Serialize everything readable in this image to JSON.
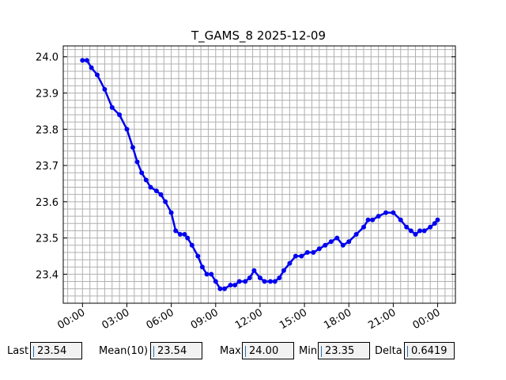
{
  "chart_data": {
    "type": "line",
    "title": "T_GAMS_8 2025-12-09",
    "xlabel": "",
    "ylabel": "",
    "x_unit": "hours since 00:00",
    "xlim": [
      -1.3,
      25.2
    ],
    "ylim": [
      23.32,
      24.03
    ],
    "x_tick_values": [
      0,
      3,
      6,
      9,
      12,
      15,
      18,
      21,
      24
    ],
    "x_tick_labels": [
      "00:00",
      "03:00",
      "06:00",
      "09:00",
      "12:00",
      "15:00",
      "18:00",
      "21:00",
      "00:00"
    ],
    "y_tick_values": [
      23.4,
      23.5,
      23.6,
      23.7,
      23.8,
      23.9,
      24.0
    ],
    "y_tick_labels": [
      "23.4",
      "23.5",
      "23.6",
      "23.7",
      "23.8",
      "23.9",
      "24.0"
    ],
    "grid": true,
    "series": [
      {
        "color": "#0000ee",
        "x": [
          0.0,
          0.3,
          0.6,
          1.0,
          1.5,
          2.0,
          2.5,
          3.0,
          3.4,
          3.7,
          4.0,
          4.3,
          4.6,
          5.0,
          5.3,
          5.6,
          6.0,
          6.3,
          6.6,
          6.9,
          7.1,
          7.4,
          7.8,
          8.1,
          8.4,
          8.7,
          9.0,
          9.3,
          9.6,
          10.0,
          10.3,
          10.6,
          11.0,
          11.3,
          11.6,
          12.0,
          12.3,
          12.7,
          13.0,
          13.3,
          13.6,
          14.0,
          14.4,
          14.8,
          15.2,
          15.6,
          16.0,
          16.4,
          16.8,
          17.2,
          17.6,
          18.0,
          18.5,
          19.0,
          19.3,
          19.6,
          20.0,
          20.5,
          21.0,
          21.5,
          21.9,
          22.2,
          22.5,
          22.8,
          23.1,
          23.5,
          23.8,
          24.0
        ],
        "y": [
          23.99,
          23.99,
          23.97,
          23.95,
          23.91,
          23.86,
          23.84,
          23.8,
          23.75,
          23.71,
          23.68,
          23.66,
          23.64,
          23.63,
          23.62,
          23.6,
          23.57,
          23.52,
          23.51,
          23.51,
          23.5,
          23.48,
          23.45,
          23.42,
          23.4,
          23.4,
          23.38,
          23.36,
          23.36,
          23.37,
          23.37,
          23.38,
          23.38,
          23.39,
          23.41,
          23.39,
          23.38,
          23.38,
          23.38,
          23.39,
          23.41,
          23.43,
          23.45,
          23.45,
          23.46,
          23.46,
          23.47,
          23.48,
          23.49,
          23.5,
          23.48,
          23.49,
          23.51,
          23.53,
          23.55,
          23.55,
          23.56,
          23.57,
          23.57,
          23.55,
          23.53,
          23.52,
          23.51,
          23.52,
          23.52,
          23.53,
          23.54,
          23.55
        ]
      }
    ]
  },
  "stats": {
    "last_label": "Last",
    "last_value": "23.54",
    "mean_label": "Mean(10)",
    "mean_value": "23.54",
    "max_label": "Max",
    "max_value": "24.00",
    "min_label": "Min",
    "min_value": "23.35",
    "delta_label": "Delta",
    "delta_value": "0.6419"
  }
}
